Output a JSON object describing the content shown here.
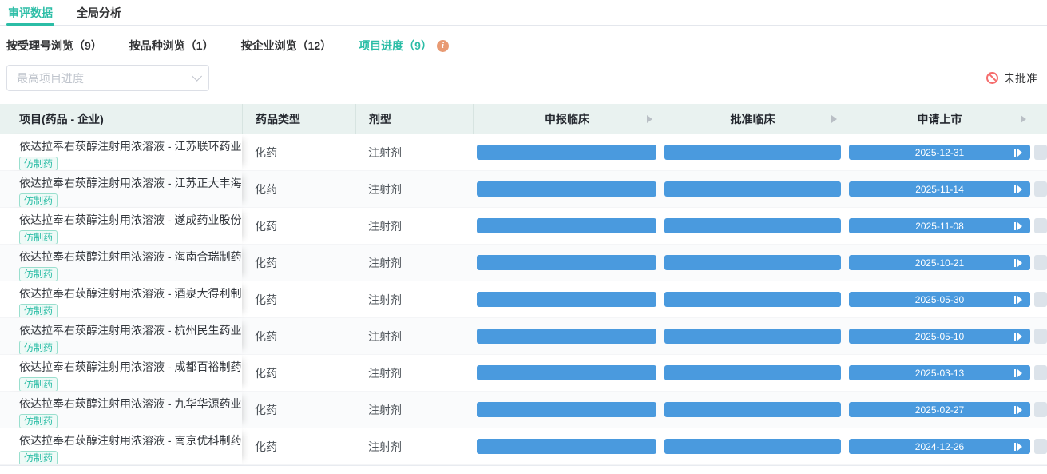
{
  "tabs": [
    {
      "label": "审评数据",
      "active": true
    },
    {
      "label": "全局分析",
      "active": false
    }
  ],
  "subtabs": [
    {
      "label": "按受理号浏览（9）",
      "active": false
    },
    {
      "label": "按品种浏览（1）",
      "active": false
    },
    {
      "label": "按企业浏览（12）",
      "active": false
    },
    {
      "label": "项目进度（9）",
      "active": true,
      "info_icon": "i"
    }
  ],
  "filter": {
    "dropdown_placeholder": "最高项目进度"
  },
  "legend": {
    "not_approved_label": "未批准"
  },
  "table": {
    "columns": [
      "项目(药品 - 企业)",
      "药品类型",
      "剂型",
      "申报临床",
      "批准临床",
      "申请上市"
    ],
    "rows": [
      {
        "project": "依达拉奉右莰醇注射用浓溶液 - 江苏联环药业",
        "tag": "仿制药",
        "drug_type": "化药",
        "dosage_form": "注射剂",
        "apply_market_date": "2025-12-31"
      },
      {
        "project": "依达拉奉右莰醇注射用浓溶液 - 江苏正大丰海",
        "tag": "仿制药",
        "drug_type": "化药",
        "dosage_form": "注射剂",
        "apply_market_date": "2025-11-14"
      },
      {
        "project": "依达拉奉右莰醇注射用浓溶液 - 遂成药业股份",
        "tag": "仿制药",
        "drug_type": "化药",
        "dosage_form": "注射剂",
        "apply_market_date": "2025-11-08"
      },
      {
        "project": "依达拉奉右莰醇注射用浓溶液 - 海南合瑞制药",
        "tag": "仿制药",
        "drug_type": "化药",
        "dosage_form": "注射剂",
        "apply_market_date": "2025-10-21"
      },
      {
        "project": "依达拉奉右莰醇注射用浓溶液 - 酒泉大得利制",
        "tag": "仿制药",
        "drug_type": "化药",
        "dosage_form": "注射剂",
        "apply_market_date": "2025-05-30"
      },
      {
        "project": "依达拉奉右莰醇注射用浓溶液 - 杭州民生药业",
        "tag": "仿制药",
        "drug_type": "化药",
        "dosage_form": "注射剂",
        "apply_market_date": "2025-05-10"
      },
      {
        "project": "依达拉奉右莰醇注射用浓溶液 - 成都百裕制药",
        "tag": "仿制药",
        "drug_type": "化药",
        "dosage_form": "注射剂",
        "apply_market_date": "2025-03-13"
      },
      {
        "project": "依达拉奉右莰醇注射用浓溶液 - 九华华源药业",
        "tag": "仿制药",
        "drug_type": "化药",
        "dosage_form": "注射剂",
        "apply_market_date": "2025-02-27"
      },
      {
        "project": "依达拉奉右莰醇注射用浓溶液 - 南京优科制药",
        "tag": "仿制药",
        "drug_type": "化药",
        "dosage_form": "注射剂",
        "apply_market_date": "2024-12-26"
      }
    ]
  },
  "colors": {
    "accent_teal": "#2bbda6",
    "progress_bar_blue": "#4a9ade",
    "not_approved_red": "#f56c6c",
    "info_icon_orange": "#e89a73",
    "stub_bar_gray": "#dce3ea",
    "table_header_bg": "#e9f2f0"
  }
}
